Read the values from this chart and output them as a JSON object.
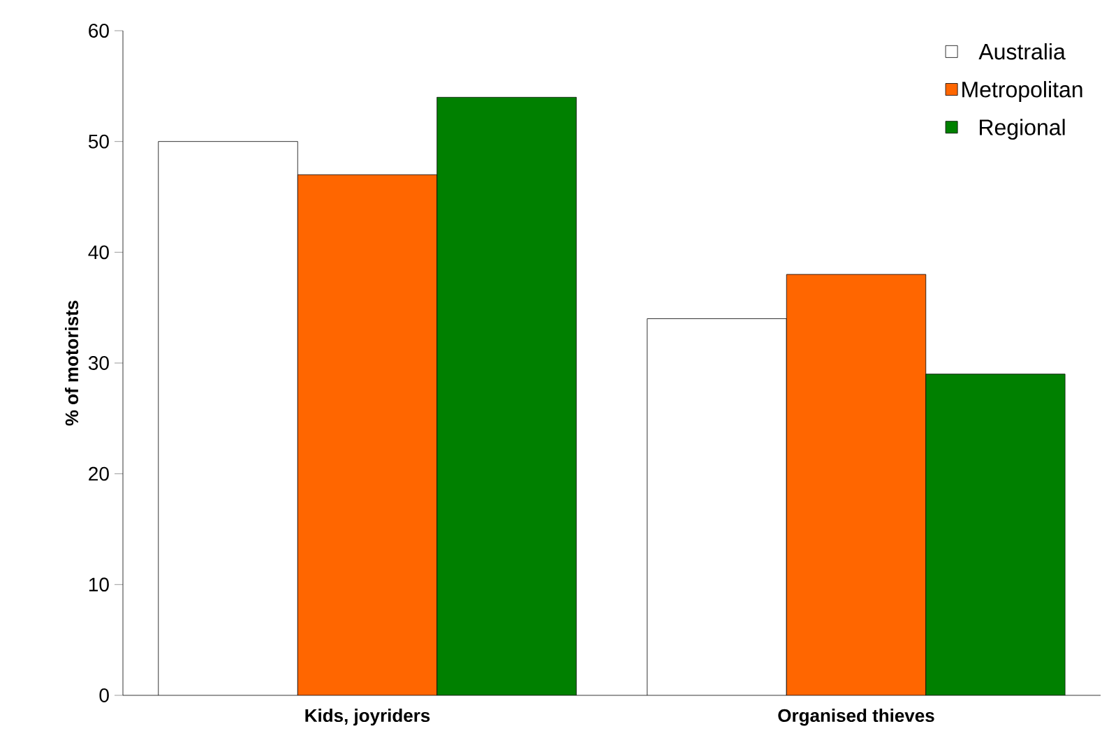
{
  "chart_data": {
    "type": "bar",
    "ylabel": "% of motorists",
    "categories": [
      "Kids, joyriders",
      "Organised thieves"
    ],
    "series": [
      {
        "name": "Australia",
        "color": "#ffffff",
        "values": [
          50,
          34
        ]
      },
      {
        "name": "Metropolitan",
        "color": "#ff6600",
        "values": [
          47,
          38
        ]
      },
      {
        "name": "Regional",
        "color": "#008000",
        "values": [
          54,
          29
        ]
      }
    ],
    "ylim": [
      0,
      60
    ],
    "yticks": [
      0,
      10,
      20,
      30,
      40,
      50,
      60
    ],
    "legend": "top right"
  }
}
